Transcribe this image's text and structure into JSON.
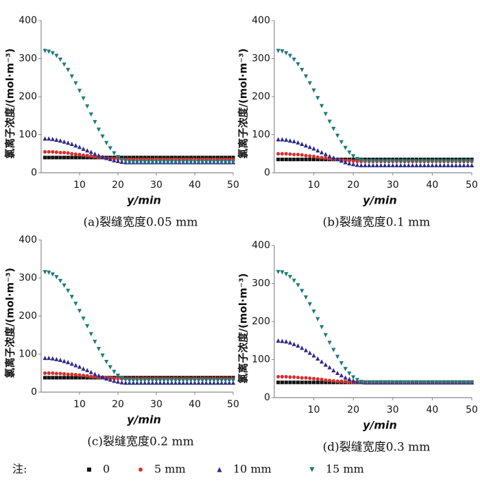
{
  "legend_title": "注:",
  "chart_data": [
    {
      "type": "scatter",
      "caption": "(a)裂缝宽度0.05 mm",
      "xlabel": "y/min",
      "ylabel": "氯离子浓度/(mol·m⁻³)",
      "xlim": [
        0,
        50
      ],
      "ylim": [
        0,
        400
      ],
      "xticks": [
        10,
        20,
        30,
        40,
        50
      ],
      "yticks": [
        0,
        100,
        200,
        300,
        400
      ],
      "x": [
        1,
        2,
        3,
        4,
        5,
        6,
        7,
        8,
        9,
        10,
        11,
        12,
        13,
        14,
        15,
        16,
        17,
        18,
        19,
        20,
        21,
        22,
        23,
        24,
        25,
        26,
        27,
        28,
        29,
        30,
        31,
        32,
        33,
        34,
        35,
        36,
        37,
        38,
        39,
        40,
        41,
        42,
        43,
        44,
        45,
        46,
        47,
        48,
        49,
        50
      ],
      "series": [
        {
          "name": "0",
          "color": "#111111",
          "marker": "square",
          "values": [
            40,
            40,
            40,
            40,
            40,
            40,
            40,
            40,
            40,
            40,
            40,
            40,
            40,
            40,
            40,
            40,
            40,
            40,
            40,
            40,
            40,
            40,
            40,
            40,
            40,
            40,
            40,
            40,
            40,
            40,
            40,
            40,
            40,
            40,
            40,
            40,
            40,
            40,
            40,
            40,
            40,
            40,
            40,
            40,
            40,
            40,
            40,
            40,
            40,
            40
          ]
        },
        {
          "name": "5 mm",
          "color": "#d9302c",
          "marker": "circle",
          "values": [
            55,
            55,
            55,
            54,
            53,
            53,
            52,
            50,
            49,
            48,
            46,
            45,
            44,
            42,
            41,
            40,
            38,
            37,
            37,
            36,
            35,
            35,
            35,
            35,
            35,
            35,
            35,
            35,
            35,
            35,
            35,
            35,
            35,
            35,
            35,
            35,
            35,
            35,
            35,
            35,
            35,
            35,
            35,
            35,
            35,
            35,
            35,
            35,
            35,
            35
          ]
        },
        {
          "name": "10 mm",
          "color": "#2e2a8a",
          "marker": "triangle-up",
          "values": [
            90,
            90,
            89,
            87,
            85,
            82,
            79,
            76,
            72,
            68,
            63,
            59,
            55,
            50,
            46,
            42,
            39,
            36,
            33,
            31,
            29,
            28,
            28,
            28,
            28,
            28,
            28,
            28,
            28,
            28,
            28,
            28,
            28,
            28,
            28,
            28,
            28,
            28,
            28,
            28,
            28,
            28,
            28,
            28,
            28,
            28,
            28,
            28,
            28,
            28
          ]
        },
        {
          "name": "15 mm",
          "color": "#1f7b78",
          "marker": "triangle-down",
          "values": [
            320,
            318,
            314,
            307,
            297,
            284,
            270,
            253,
            235,
            215,
            195,
            174,
            153,
            133,
            113,
            95,
            78,
            64,
            51,
            41,
            34,
            30,
            28,
            28,
            28,
            28,
            28,
            28,
            28,
            28,
            28,
            28,
            28,
            28,
            28,
            28,
            28,
            28,
            28,
            28,
            28,
            28,
            28,
            28,
            28,
            28,
            28,
            28,
            28,
            28
          ]
        }
      ]
    },
    {
      "type": "scatter",
      "caption": "(b)裂缝宽度0.1 mm",
      "xlabel": "y/min",
      "ylabel": "氯离子浓度/(mol·m⁻³)",
      "xlim": [
        0,
        50
      ],
      "ylim": [
        0,
        400
      ],
      "xticks": [
        10,
        20,
        30,
        40,
        50
      ],
      "yticks": [
        0,
        100,
        200,
        300,
        400
      ],
      "x": [
        1,
        2,
        3,
        4,
        5,
        6,
        7,
        8,
        9,
        10,
        11,
        12,
        13,
        14,
        15,
        16,
        17,
        18,
        19,
        20,
        21,
        22,
        23,
        24,
        25,
        26,
        27,
        28,
        29,
        30,
        31,
        32,
        33,
        34,
        35,
        36,
        37,
        38,
        39,
        40,
        41,
        42,
        43,
        44,
        45,
        46,
        47,
        48,
        49,
        50
      ],
      "series": [
        {
          "name": "0",
          "color": "#111111",
          "marker": "square",
          "values": [
            35,
            35,
            35,
            35,
            35,
            35,
            35,
            35,
            35,
            35,
            35,
            35,
            35,
            35,
            35,
            35,
            35,
            35,
            35,
            35,
            35,
            35,
            35,
            35,
            35,
            35,
            35,
            35,
            35,
            35,
            35,
            35,
            35,
            35,
            35,
            35,
            35,
            35,
            35,
            35,
            35,
            35,
            35,
            35,
            35,
            35,
            35,
            35,
            35,
            35
          ]
        },
        {
          "name": "5 mm",
          "color": "#d9302c",
          "marker": "circle",
          "values": [
            50,
            50,
            50,
            49,
            48,
            48,
            47,
            45,
            44,
            43,
            41,
            40,
            39,
            37,
            36,
            35,
            33,
            32,
            32,
            31,
            30,
            30,
            30,
            30,
            30,
            30,
            30,
            30,
            30,
            30,
            30,
            30,
            30,
            30,
            30,
            30,
            30,
            30,
            30,
            30,
            30,
            30,
            30,
            30,
            30,
            30,
            30,
            30,
            30,
            30
          ]
        },
        {
          "name": "10 mm",
          "color": "#2e2a8a",
          "marker": "triangle-up",
          "values": [
            88,
            88,
            87,
            85,
            83,
            80,
            76,
            72,
            68,
            64,
            59,
            54,
            49,
            44,
            40,
            36,
            32,
            28,
            25,
            23,
            21,
            20,
            20,
            20,
            20,
            20,
            20,
            20,
            20,
            20,
            20,
            20,
            20,
            20,
            20,
            20,
            20,
            20,
            20,
            20,
            20,
            20,
            20,
            20,
            20,
            20,
            20,
            20,
            20,
            20
          ]
        },
        {
          "name": "15 mm",
          "color": "#1f7b78",
          "marker": "triangle-down",
          "values": [
            320,
            319,
            314,
            307,
            297,
            285,
            270,
            253,
            235,
            216,
            196,
            175,
            154,
            134,
            115,
            97,
            80,
            65,
            53,
            43,
            36,
            32,
            30,
            30,
            30,
            30,
            30,
            30,
            30,
            30,
            30,
            30,
            30,
            30,
            30,
            30,
            30,
            30,
            30,
            30,
            30,
            30,
            30,
            30,
            30,
            30,
            30,
            30,
            30,
            30
          ]
        }
      ]
    },
    {
      "type": "scatter",
      "caption": "(c)裂缝宽度0.2 mm",
      "xlabel": "y/min",
      "ylabel": "氯离子浓度/(mol·m⁻³)",
      "xlim": [
        0,
        50
      ],
      "ylim": [
        0,
        400
      ],
      "xticks": [
        10,
        20,
        30,
        40,
        50
      ],
      "yticks": [
        0,
        100,
        200,
        300,
        400
      ],
      "x": [
        1,
        2,
        3,
        4,
        5,
        6,
        7,
        8,
        9,
        10,
        11,
        12,
        13,
        14,
        15,
        16,
        17,
        18,
        19,
        20,
        21,
        22,
        23,
        24,
        25,
        26,
        27,
        28,
        29,
        30,
        31,
        32,
        33,
        34,
        35,
        36,
        37,
        38,
        39,
        40,
        41,
        42,
        43,
        44,
        45,
        46,
        47,
        48,
        49,
        50
      ],
      "series": [
        {
          "name": "0",
          "color": "#111111",
          "marker": "square",
          "values": [
            38,
            38,
            38,
            38,
            38,
            38,
            38,
            38,
            38,
            38,
            38,
            38,
            38,
            38,
            38,
            38,
            38,
            38,
            38,
            38,
            38,
            38,
            38,
            38,
            38,
            38,
            38,
            38,
            38,
            38,
            38,
            38,
            38,
            38,
            38,
            38,
            38,
            38,
            38,
            38,
            38,
            38,
            38,
            38,
            38,
            38,
            38,
            38,
            38,
            38
          ]
        },
        {
          "name": "5 mm",
          "color": "#d9302c",
          "marker": "circle",
          "values": [
            50,
            50,
            50,
            49,
            49,
            48,
            47,
            47,
            46,
            45,
            44,
            43,
            41,
            40,
            39,
            38,
            38,
            37,
            36,
            36,
            35,
            35,
            35,
            35,
            35,
            35,
            35,
            35,
            35,
            35,
            35,
            35,
            35,
            35,
            35,
            35,
            35,
            35,
            35,
            35,
            35,
            35,
            35,
            35,
            35,
            35,
            35,
            35,
            35,
            35
          ]
        },
        {
          "name": "10 mm",
          "color": "#2e2a8a",
          "marker": "triangle-up",
          "values": [
            90,
            90,
            89,
            87,
            85,
            82,
            79,
            75,
            71,
            67,
            62,
            58,
            53,
            48,
            44,
            40,
            36,
            33,
            30,
            28,
            26,
            25,
            25,
            25,
            25,
            25,
            25,
            25,
            25,
            25,
            25,
            25,
            25,
            25,
            25,
            25,
            25,
            25,
            25,
            25,
            25,
            25,
            25,
            25,
            25,
            25,
            25,
            25,
            25,
            25
          ]
        },
        {
          "name": "15 mm",
          "color": "#1f7b78",
          "marker": "triangle-down",
          "values": [
            315,
            314,
            309,
            302,
            292,
            280,
            266,
            250,
            232,
            213,
            193,
            173,
            152,
            132,
            113,
            96,
            79,
            65,
            53,
            43,
            36,
            32,
            30,
            30,
            30,
            30,
            30,
            30,
            30,
            30,
            30,
            30,
            30,
            30,
            30,
            30,
            30,
            30,
            30,
            30,
            30,
            30,
            30,
            30,
            30,
            30,
            30,
            30,
            30,
            30
          ]
        }
      ]
    },
    {
      "type": "scatter",
      "caption": "(d)裂缝宽度0.3 mm",
      "xlabel": "y/min",
      "ylabel": "氯离子浓度/(mol·m⁻³)",
      "xlim": [
        0,
        50
      ],
      "ylim": [
        0,
        400
      ],
      "xticks": [
        10,
        20,
        30,
        40,
        50
      ],
      "yticks": [
        0,
        100,
        200,
        300,
        400
      ],
      "x": [
        1,
        2,
        3,
        4,
        5,
        6,
        7,
        8,
        9,
        10,
        11,
        12,
        13,
        14,
        15,
        16,
        17,
        18,
        19,
        20,
        21,
        22,
        23,
        24,
        25,
        26,
        27,
        28,
        29,
        30,
        31,
        32,
        33,
        34,
        35,
        36,
        37,
        38,
        39,
        40,
        41,
        42,
        43,
        44,
        45,
        46,
        47,
        48,
        49,
        50
      ],
      "series": [
        {
          "name": "0",
          "color": "#111111",
          "marker": "square",
          "values": [
            40,
            40,
            40,
            40,
            40,
            40,
            40,
            40,
            40,
            40,
            40,
            40,
            40,
            40,
            40,
            40,
            40,
            40,
            40,
            40,
            40,
            40,
            40,
            40,
            40,
            40,
            40,
            40,
            40,
            40,
            40,
            40,
            40,
            40,
            40,
            40,
            40,
            40,
            40,
            40,
            40,
            40,
            40,
            40,
            40,
            40,
            40,
            40,
            40,
            40
          ]
        },
        {
          "name": "5 mm",
          "color": "#d9302c",
          "marker": "circle",
          "values": [
            55,
            55,
            55,
            54,
            54,
            53,
            52,
            52,
            51,
            50,
            49,
            48,
            46,
            45,
            44,
            43,
            43,
            42,
            41,
            41,
            40,
            40,
            40,
            40,
            40,
            40,
            40,
            40,
            40,
            40,
            40,
            40,
            40,
            40,
            40,
            40,
            40,
            40,
            40,
            40,
            40,
            40,
            40,
            40,
            40,
            40,
            40,
            40,
            40,
            40
          ]
        },
        {
          "name": "10 mm",
          "color": "#2e2a8a",
          "marker": "triangle-up",
          "values": [
            150,
            149,
            148,
            145,
            141,
            137,
            131,
            125,
            118,
            111,
            103,
            95,
            87,
            80,
            72,
            65,
            59,
            53,
            49,
            45,
            42,
            41,
            40,
            40,
            40,
            40,
            40,
            40,
            40,
            40,
            40,
            40,
            40,
            40,
            40,
            40,
            40,
            40,
            40,
            40,
            40,
            40,
            40,
            40,
            40,
            40,
            40,
            40,
            40,
            40
          ]
        },
        {
          "name": "15 mm",
          "color": "#1f7b78",
          "marker": "triangle-down",
          "values": [
            330,
            329,
            324,
            317,
            307,
            295,
            280,
            263,
            245,
            226,
            206,
            185,
            164,
            144,
            125,
            107,
            90,
            75,
            63,
            53,
            46,
            41,
            40,
            40,
            40,
            40,
            40,
            40,
            40,
            40,
            40,
            40,
            40,
            40,
            40,
            40,
            40,
            40,
            40,
            40,
            40,
            40,
            40,
            40,
            40,
            40,
            40,
            40,
            40,
            40
          ]
        }
      ]
    }
  ]
}
